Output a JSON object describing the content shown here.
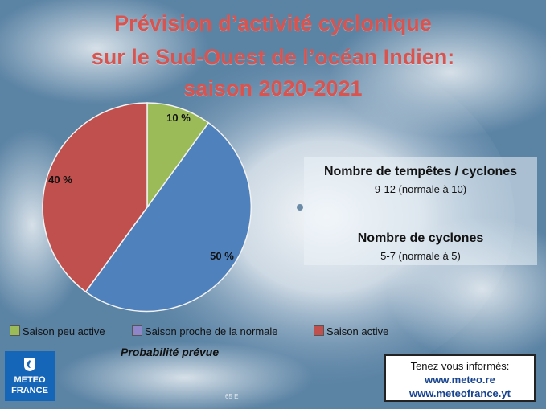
{
  "title": {
    "line1": "Prévision d’activité cyclonique",
    "line2": "sur le Sud-Ouest de l’océan Indien:",
    "line3": "saison 2020-2021"
  },
  "chart_data": {
    "type": "pie",
    "title": "Prévision d’activité cyclonique sur le Sud-Ouest de l’océan Indien: saison 2020-2021",
    "categories": [
      "Saison peu active",
      "Saison proche de la normale",
      "Saison active"
    ],
    "values": [
      10,
      50,
      40
    ],
    "value_labels": [
      "10 %",
      "50 %",
      "40 %"
    ],
    "colors": [
      "#9bbb59",
      "#4f81bd",
      "#c0504d"
    ],
    "legend_placement": "bottom",
    "xlabel": "Probabilité prévue"
  },
  "legend": {
    "items": [
      {
        "label": "Saison peu active",
        "color": "#9bbb59"
      },
      {
        "label": "Saison proche de la normale",
        "color": "#4f81bd"
      },
      {
        "label": "Saison active",
        "color": "#c0504d"
      }
    ],
    "probability_label": "Probabilité prévue"
  },
  "info": {
    "storms_title": "Nombre de tempêtes / cyclones",
    "storms_value": "9-12 (normale à 10)",
    "cyclones_title": "Nombre de cyclones",
    "cyclones_value": "5-7 (normale à 5)"
  },
  "logo": {
    "line1": "METEO",
    "line2": "FRANCE"
  },
  "contact": {
    "text": "Tenez vous informés:",
    "link1": "www.meteo.re",
    "link2": "www.meteofrance.yt"
  },
  "map": {
    "coord_label": "65 E"
  },
  "colors": {
    "title": "#d9534f",
    "brand_blue": "#1565b8",
    "link": "#17448f"
  }
}
